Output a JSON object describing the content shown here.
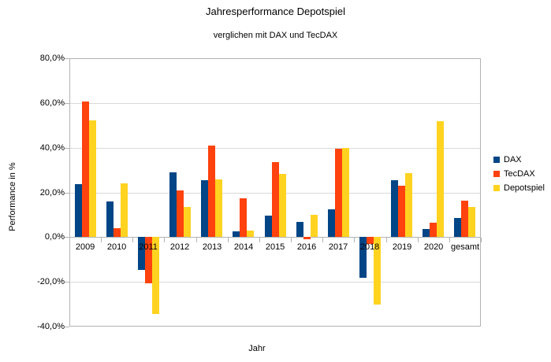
{
  "chart_data": {
    "type": "bar",
    "title": "Jahresperformance Depotspiel",
    "subtitle": "verglichen mit DAX und TecDAX",
    "xlabel": "Jahr",
    "ylabel": "Performance in %",
    "categories": [
      "2009",
      "2010",
      "2011",
      "2012",
      "2013",
      "2014",
      "2015",
      "2016",
      "2017",
      "2018",
      "2019",
      "2020",
      "gesamt"
    ],
    "series": [
      {
        "name": "DAX",
        "color": "#004586",
        "values": [
          23.8,
          16.1,
          -14.7,
          29.1,
          25.5,
          2.7,
          9.6,
          6.9,
          12.5,
          -18.3,
          25.5,
          3.5,
          8.5
        ]
      },
      {
        "name": "TecDAX",
        "color": "#FF420E",
        "values": [
          60.8,
          4.0,
          -20.8,
          20.9,
          40.9,
          17.5,
          33.5,
          -1.0,
          39.6,
          -3.1,
          23.0,
          6.6,
          16.3
        ]
      },
      {
        "name": "Depotspiel",
        "color": "#FFD320",
        "values": [
          52.3,
          23.9,
          -34.5,
          13.5,
          25.9,
          2.9,
          28.3,
          9.8,
          39.8,
          -30.2,
          28.6,
          51.8,
          13.5
        ]
      }
    ],
    "ylim": [
      -40,
      80
    ],
    "ytick_step": 20,
    "ytick_labels": [
      "80,0%",
      "60,0%",
      "40,0%",
      "20,0%",
      "0,0%",
      "-20,0%",
      "-40,0%"
    ],
    "grid": true,
    "legend_position": "right",
    "legend_entries": [
      "DAX",
      "TecDAX",
      "Depotspiel"
    ]
  },
  "colors": {
    "dax": "#004586",
    "tecdax": "#FF420E",
    "depotspiel": "#FFD320",
    "gridline": "#d9d9d9",
    "axis": "#b3b3b3",
    "text": "#000000",
    "background": "#FFFFFF"
  }
}
